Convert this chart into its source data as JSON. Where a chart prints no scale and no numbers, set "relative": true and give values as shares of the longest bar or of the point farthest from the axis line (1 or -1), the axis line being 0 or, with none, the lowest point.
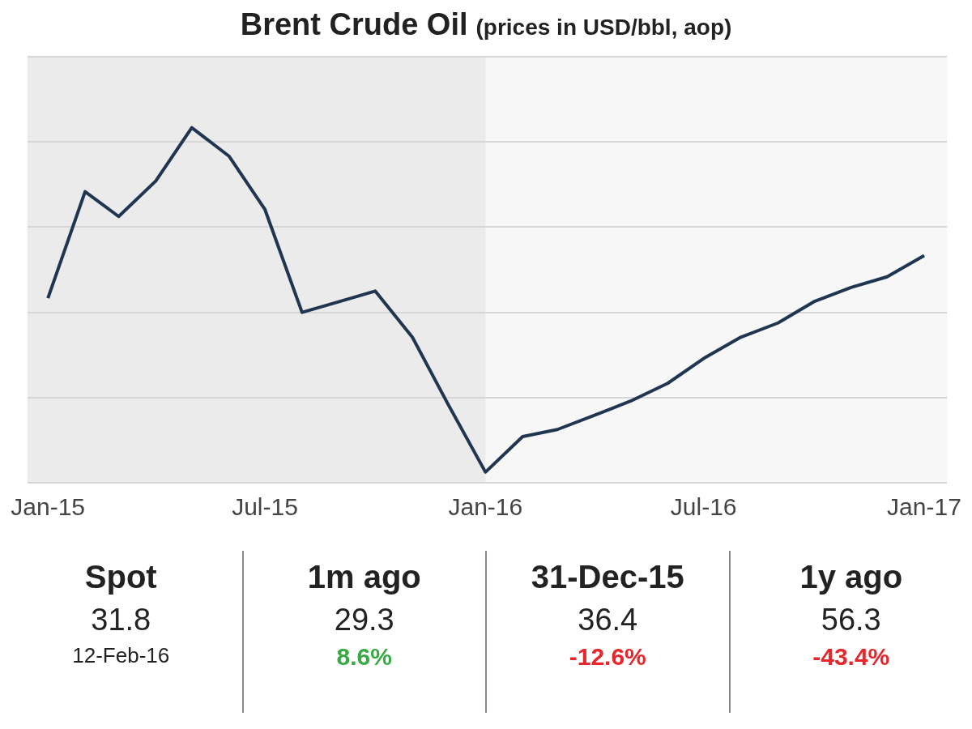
{
  "chart_data": {
    "type": "line",
    "title": "Brent Crude Oil",
    "subtitle": "(prices in USD/bbl, aop)",
    "x": [
      "2015-01",
      "2015-02",
      "2015-03",
      "2015-04",
      "2015-05",
      "2015-06",
      "2015-07",
      "2015-08",
      "2015-09",
      "2015-10",
      "2015-11",
      "2015-12",
      "2016-01",
      "2016-02",
      "2016-03",
      "2016-04",
      "2016-05",
      "2016-06",
      "2016-07",
      "2016-08",
      "2016-09",
      "2016-10",
      "2016-11",
      "2016-12",
      "2017-01"
    ],
    "series": [
      {
        "color": "#1f3550",
        "values": [
          0.52,
          0.82,
          0.75,
          0.85,
          1.0,
          0.92,
          0.77,
          0.48,
          0.51,
          0.54,
          0.41,
          0.22,
          0.03,
          0.13,
          0.15,
          0.19,
          0.23,
          0.28,
          0.35,
          0.41,
          0.45,
          0.51,
          0.55,
          0.58,
          0.64
        ]
      }
    ],
    "relative": true,
    "xlim": [
      "2014-12-15",
      "2017-01-20"
    ],
    "xticks": [
      {
        "value": "2015-01",
        "label": "Jan-15"
      },
      {
        "value": "2015-07",
        "label": "Jul-15"
      },
      {
        "value": "2016-01",
        "label": "Jan-16"
      },
      {
        "value": "2016-07",
        "label": "Jul-16"
      },
      {
        "value": "2017-01",
        "label": "Jan-17"
      }
    ],
    "bands": [
      {
        "axis": "x",
        "from": "2016-01",
        "to": "2017-01-20",
        "color": "#f7f7f7"
      }
    ],
    "grid": "y",
    "legend": false,
    "marker": "none",
    "line_style": "solid",
    "annotations": [
      "Spot",
      "31.8",
      "12-Feb-16",
      "1m ago",
      "29.3",
      "8.6%",
      "31-Dec-15",
      "36.4",
      "-12.6%",
      "1y ago",
      "56.3",
      "-43.4%"
    ]
  }
}
